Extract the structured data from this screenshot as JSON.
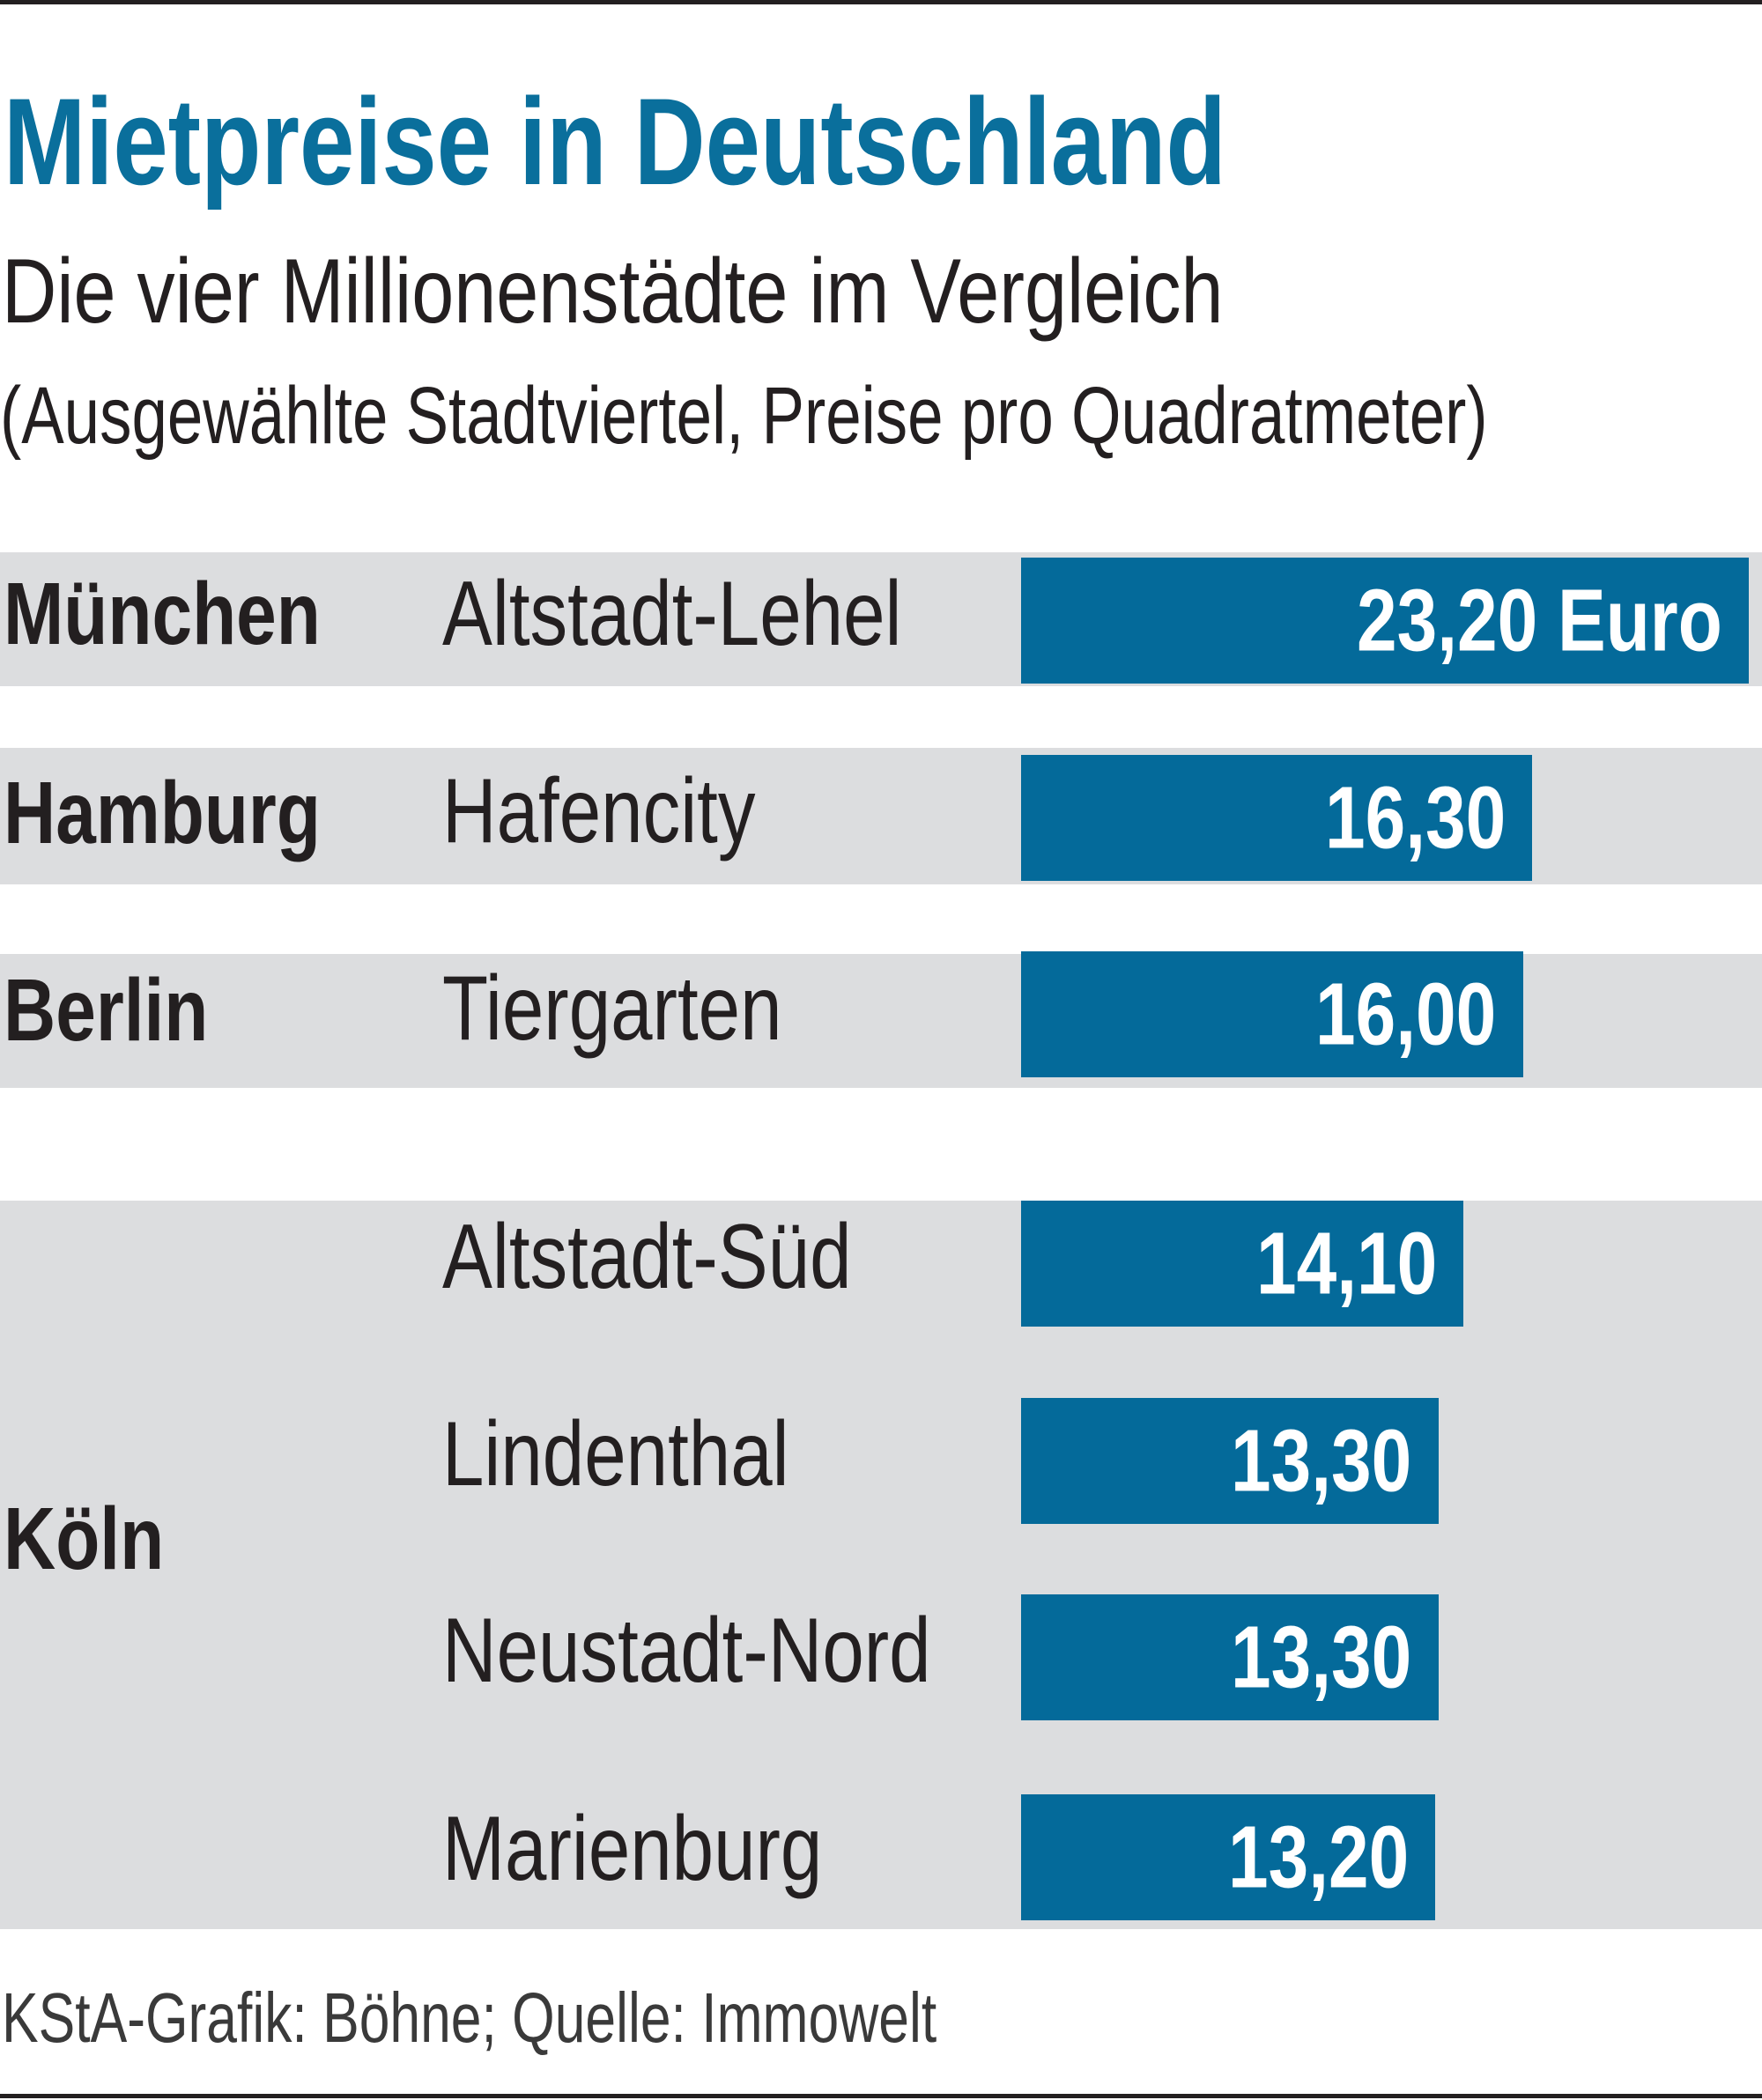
{
  "chart_data": {
    "type": "bar",
    "orientation": "horizontal",
    "title": "Mietpreise in Deutschland",
    "subtitle": "Die vier Millionenstädte im Vergleich",
    "note": "(Ausgewählte Stadtviertel, Preise pro Quadratmeter)",
    "unit": "Euro",
    "rows": [
      {
        "city": "München",
        "district": "Altstadt-Lehel",
        "value": 23.2,
        "label": "23,20 Euro"
      },
      {
        "city": "Hamburg",
        "district": "Hafencity",
        "value": 16.3,
        "label": "16,30"
      },
      {
        "city": "Berlin",
        "district": "Tiergarten",
        "value": 16.0,
        "label": "16,00"
      },
      {
        "city": "Köln",
        "district": "Altstadt-Süd",
        "value": 14.1,
        "label": "14,10"
      },
      {
        "city": "Köln",
        "district": "Lindenthal",
        "value": 13.3,
        "label": "13,30"
      },
      {
        "city": "Köln",
        "district": "Neustadt-Nord",
        "value": 13.3,
        "label": "13,30"
      },
      {
        "city": "Köln",
        "district": "Marienburg",
        "value": 13.2,
        "label": "13,20"
      }
    ],
    "source": "KStA-Grafik: Böhne; Quelle: Immowelt",
    "colors": {
      "title": "#0a6f9c",
      "bar": "#046a9a",
      "band": "#dcdddf"
    }
  }
}
